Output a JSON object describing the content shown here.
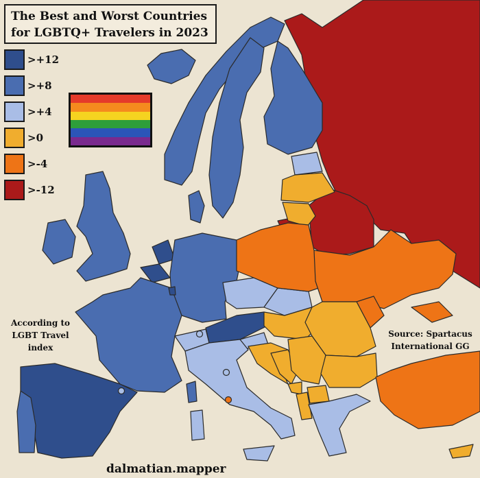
{
  "title": {
    "line1": "The Best and Worst Countries",
    "line2": "for LGBTQ+ Travelers in 2023"
  },
  "legend": [
    {
      "label": ">+12",
      "color": "#2f4e8c"
    },
    {
      "label": ">+8",
      "color": "#4a6db0"
    },
    {
      "label": ">+4",
      "color": "#a9bde6"
    },
    {
      "label": ">0",
      "color": "#f0ad2e"
    },
    {
      "label": ">-4",
      "color": "#ee7416"
    },
    {
      "label": ">-12",
      "color": "#ab1a1a"
    }
  ],
  "flag_colors": [
    "#e53a2a",
    "#f58a1e",
    "#f5d320",
    "#2e9e3a",
    "#2b55b8",
    "#7a2a8e"
  ],
  "note_left": {
    "line1": "According to",
    "line2": "LGBT Travel",
    "line3": "index"
  },
  "note_right": {
    "line1": "Source: Spartacus",
    "line2": "International GG"
  },
  "credit": "dalmatian.mapper",
  "colors": {
    "background": "#ece4d2",
    "sea": "#ece4d2",
    "border": "#2a2a2a"
  }
}
